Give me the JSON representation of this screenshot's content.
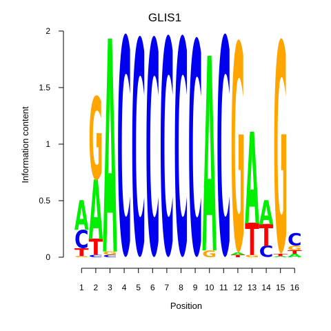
{
  "chart_data": {
    "type": "sequence-logo",
    "title": "GLIS1",
    "xlabel": "Position",
    "ylabel": "Information content",
    "ylim": [
      0,
      2
    ],
    "y_ticks": [
      "0",
      "0.5",
      "1",
      "1.5",
      "2"
    ],
    "y_tick_values": [
      0,
      0.5,
      1,
      1.5,
      2
    ],
    "x_ticks": [
      "1",
      "2",
      "3",
      "4",
      "5",
      "6",
      "7",
      "8",
      "9",
      "10",
      "11",
      "12",
      "13",
      "14",
      "15",
      "16"
    ],
    "colors": {
      "A": "#00ee00",
      "C": "#0000ee",
      "G": "#ffa500",
      "T": "#ff0000"
    },
    "positions": [
      {
        "pos": 1,
        "letters": [
          {
            "base": "G",
            "height": 0.01
          },
          {
            "base": "T",
            "height": 0.07
          },
          {
            "base": "C",
            "height": 0.16
          },
          {
            "base": "A",
            "height": 0.26
          }
        ]
      },
      {
        "pos": 2,
        "letters": [
          {
            "base": "C",
            "height": 0.02
          },
          {
            "base": "T",
            "height": 0.14
          },
          {
            "base": "A",
            "height": 0.52
          },
          {
            "base": "G",
            "height": 0.73
          }
        ]
      },
      {
        "pos": 3,
        "letters": [
          {
            "base": "C",
            "height": 0.02
          },
          {
            "base": "G",
            "height": 0.03
          },
          {
            "base": "A",
            "height": 1.86
          }
        ]
      },
      {
        "pos": 4,
        "letters": [
          {
            "base": "C",
            "height": 1.92
          }
        ]
      },
      {
        "pos": 5,
        "letters": [
          {
            "base": "C",
            "height": 1.9
          }
        ]
      },
      {
        "pos": 6,
        "letters": [
          {
            "base": "C",
            "height": 1.9
          }
        ]
      },
      {
        "pos": 7,
        "letters": [
          {
            "base": "C",
            "height": 1.91
          }
        ]
      },
      {
        "pos": 8,
        "letters": [
          {
            "base": "C",
            "height": 1.91
          }
        ]
      },
      {
        "pos": 9,
        "letters": [
          {
            "base": "C",
            "height": 1.89
          }
        ]
      },
      {
        "pos": 10,
        "letters": [
          {
            "base": "G",
            "height": 0.06
          },
          {
            "base": "A",
            "height": 1.7
          }
        ]
      },
      {
        "pos": 11,
        "letters": [
          {
            "base": "C",
            "height": 1.92
          }
        ]
      },
      {
        "pos": 12,
        "letters": [
          {
            "base": "T",
            "height": 0.02
          },
          {
            "base": "A",
            "height": 0.02
          },
          {
            "base": "G",
            "height": 1.83
          }
        ]
      },
      {
        "pos": 13,
        "letters": [
          {
            "base": "G",
            "height": 0.02
          },
          {
            "base": "T",
            "height": 0.28
          },
          {
            "base": "A",
            "height": 0.8
          }
        ]
      },
      {
        "pos": 14,
        "letters": [
          {
            "base": "C",
            "height": 0.1
          },
          {
            "base": "T",
            "height": 0.19
          },
          {
            "base": "A",
            "height": 0.21
          }
        ]
      },
      {
        "pos": 15,
        "letters": [
          {
            "base": "A",
            "height": 0.01
          },
          {
            "base": "T",
            "height": 0.02
          },
          {
            "base": "G",
            "height": 1.85
          }
        ]
      },
      {
        "pos": 16,
        "letters": [
          {
            "base": "A",
            "height": 0.03
          },
          {
            "base": "T",
            "height": 0.03
          },
          {
            "base": "G",
            "height": 0.04
          },
          {
            "base": "C",
            "height": 0.11
          }
        ]
      }
    ]
  }
}
